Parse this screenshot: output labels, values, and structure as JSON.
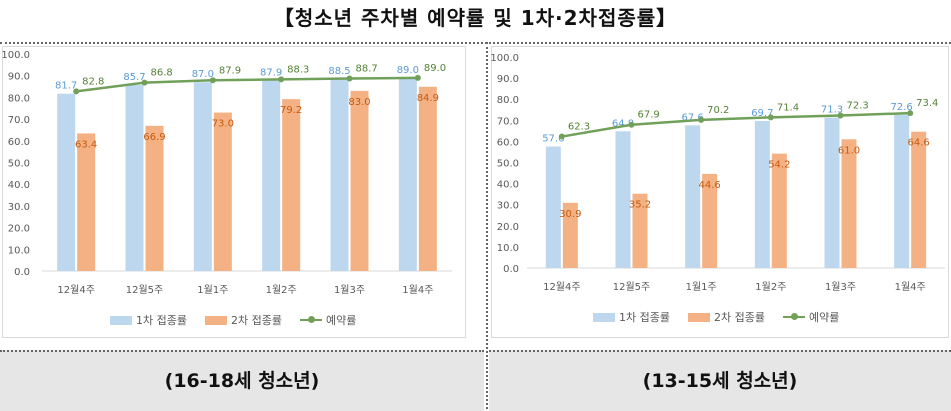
{
  "title": "【청소년 주차별 예약률 및 1차·2차접종률】",
  "colors": {
    "first": "#bdd7ee",
    "second": "#f4b183",
    "rate": "#70a05a",
    "label_first": "#5b9bd5",
    "label_second": "#c55a11",
    "label_rate": "#548235"
  },
  "legend": {
    "first": "1차 접종률",
    "second": "2차 접종률",
    "rate": "예약률"
  },
  "chart_data": [
    {
      "type": "bar",
      "caption": "(16-18세 청소년)",
      "categories": [
        "12월4주",
        "12월5주",
        "1월1주",
        "1월2주",
        "1월3주",
        "1월4주"
      ],
      "ylim": [
        0,
        100
      ],
      "yticks": [
        "0.0",
        "10.0",
        "20.0",
        "30.0",
        "40.0",
        "50.0",
        "60.0",
        "70.0",
        "80.0",
        "90.0",
        "100.0"
      ],
      "grid": false,
      "legend_position": "bottom",
      "series": [
        {
          "name": "1차 접종률",
          "kind": "bar",
          "values": [
            81.7,
            85.7,
            87.0,
            87.9,
            88.5,
            89.0
          ]
        },
        {
          "name": "2차 접종률",
          "kind": "bar",
          "values": [
            63.4,
            66.9,
            73.0,
            79.2,
            83.0,
            84.9
          ]
        },
        {
          "name": "예약률",
          "kind": "line",
          "values": [
            82.8,
            86.8,
            87.9,
            88.3,
            88.7,
            89.0
          ]
        }
      ]
    },
    {
      "type": "bar",
      "caption": "(13-15세 청소년)",
      "categories": [
        "12월4주",
        "12월5주",
        "1월1주",
        "1월2주",
        "1월3주",
        "1월4주"
      ],
      "ylim": [
        0,
        100
      ],
      "yticks": [
        "0.0",
        "10.0",
        "20.0",
        "30.0",
        "40.0",
        "50.0",
        "60.0",
        "70.0",
        "80.0",
        "90.0",
        "100.0"
      ],
      "grid": false,
      "legend_position": "bottom",
      "series": [
        {
          "name": "1차 접종률",
          "kind": "bar",
          "values": [
            57.6,
            64.8,
            67.6,
            69.7,
            71.3,
            72.6
          ]
        },
        {
          "name": "2차 접종률",
          "kind": "bar",
          "values": [
            30.9,
            35.2,
            44.6,
            54.2,
            61.0,
            64.6
          ]
        },
        {
          "name": "예약률",
          "kind": "line",
          "values": [
            62.3,
            67.9,
            70.2,
            71.4,
            72.3,
            73.4
          ]
        }
      ]
    }
  ]
}
